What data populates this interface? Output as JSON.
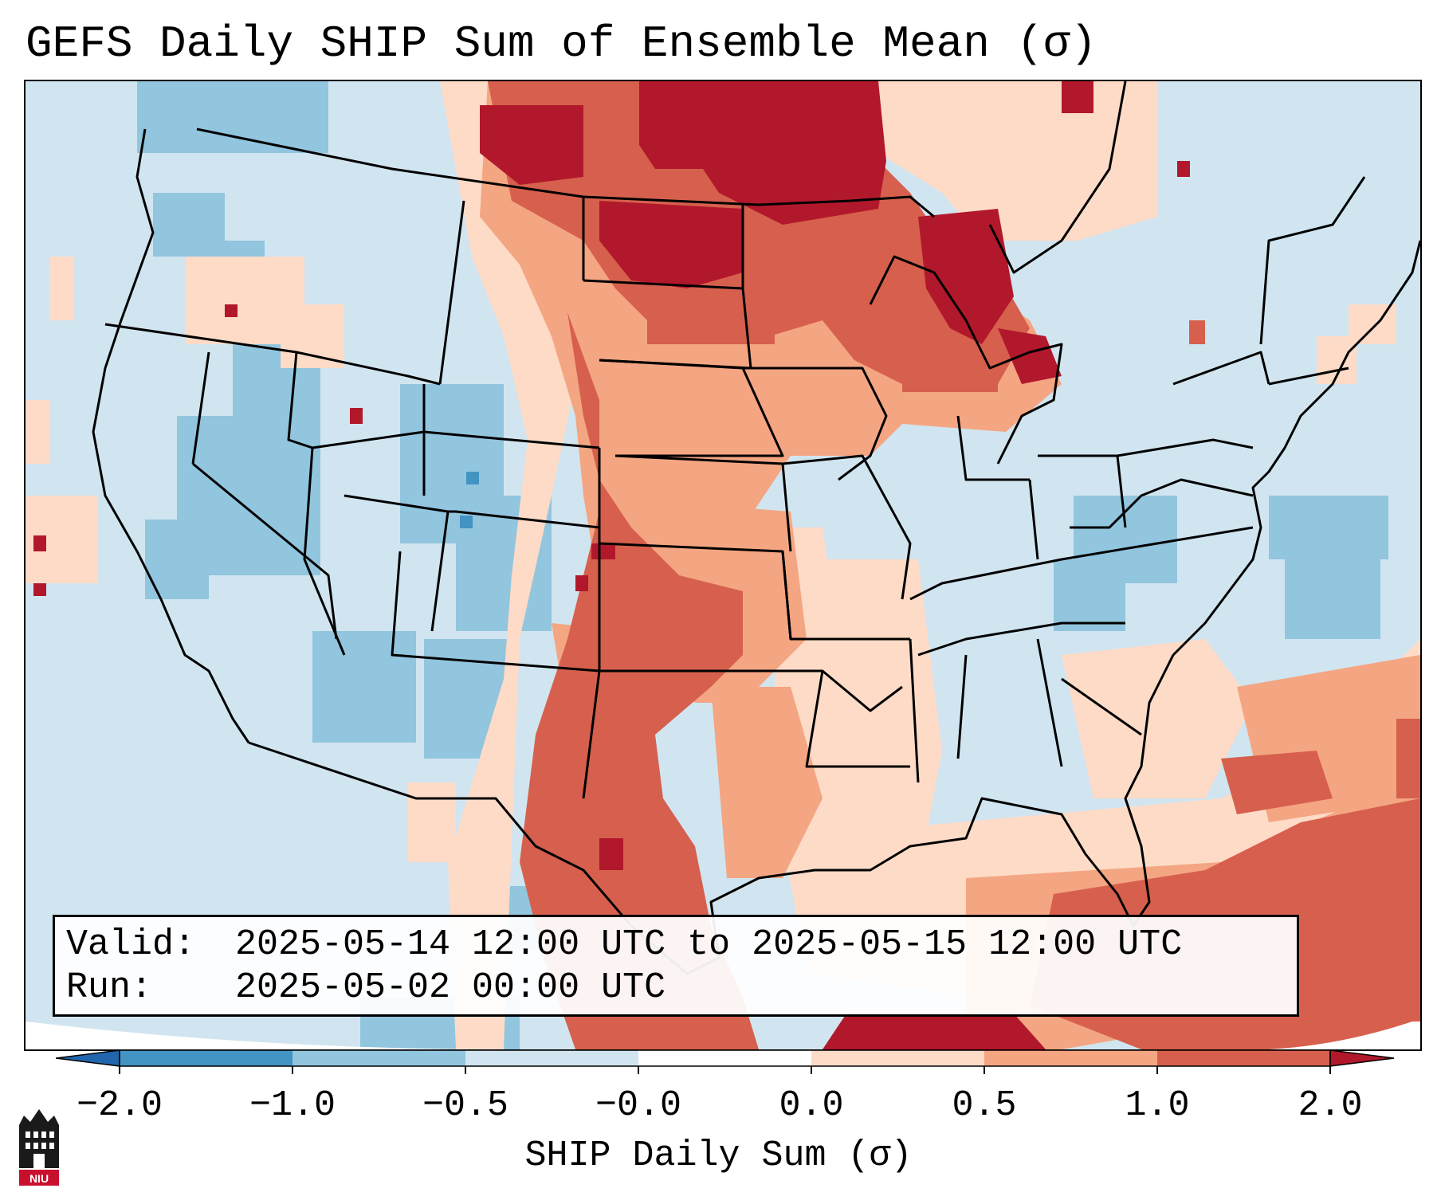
{
  "title": "GEFS Daily SHIP Sum of Ensemble Mean (σ)",
  "info": {
    "valid_label": "Valid:",
    "valid_value": "2025-05-14 12:00 UTC to 2025-05-15 12:00 UTC",
    "run_label": "Run:",
    "run_value": "2025-05-02 00:00 UTC"
  },
  "colorbar": {
    "label": "SHIP Daily Sum (σ)",
    "ticks": [
      "−2.0",
      "−1.0",
      "−0.5",
      "−0.0",
      "0.0",
      "0.5",
      "1.0",
      "2.0"
    ],
    "colors": [
      "#4393c3",
      "#92c5de",
      "#d1e5f0",
      "#ffffff",
      "#fddbc7",
      "#f4a582",
      "#d6604d",
      "#b2182b"
    ]
  },
  "logo": {
    "text": "NIU"
  }
}
